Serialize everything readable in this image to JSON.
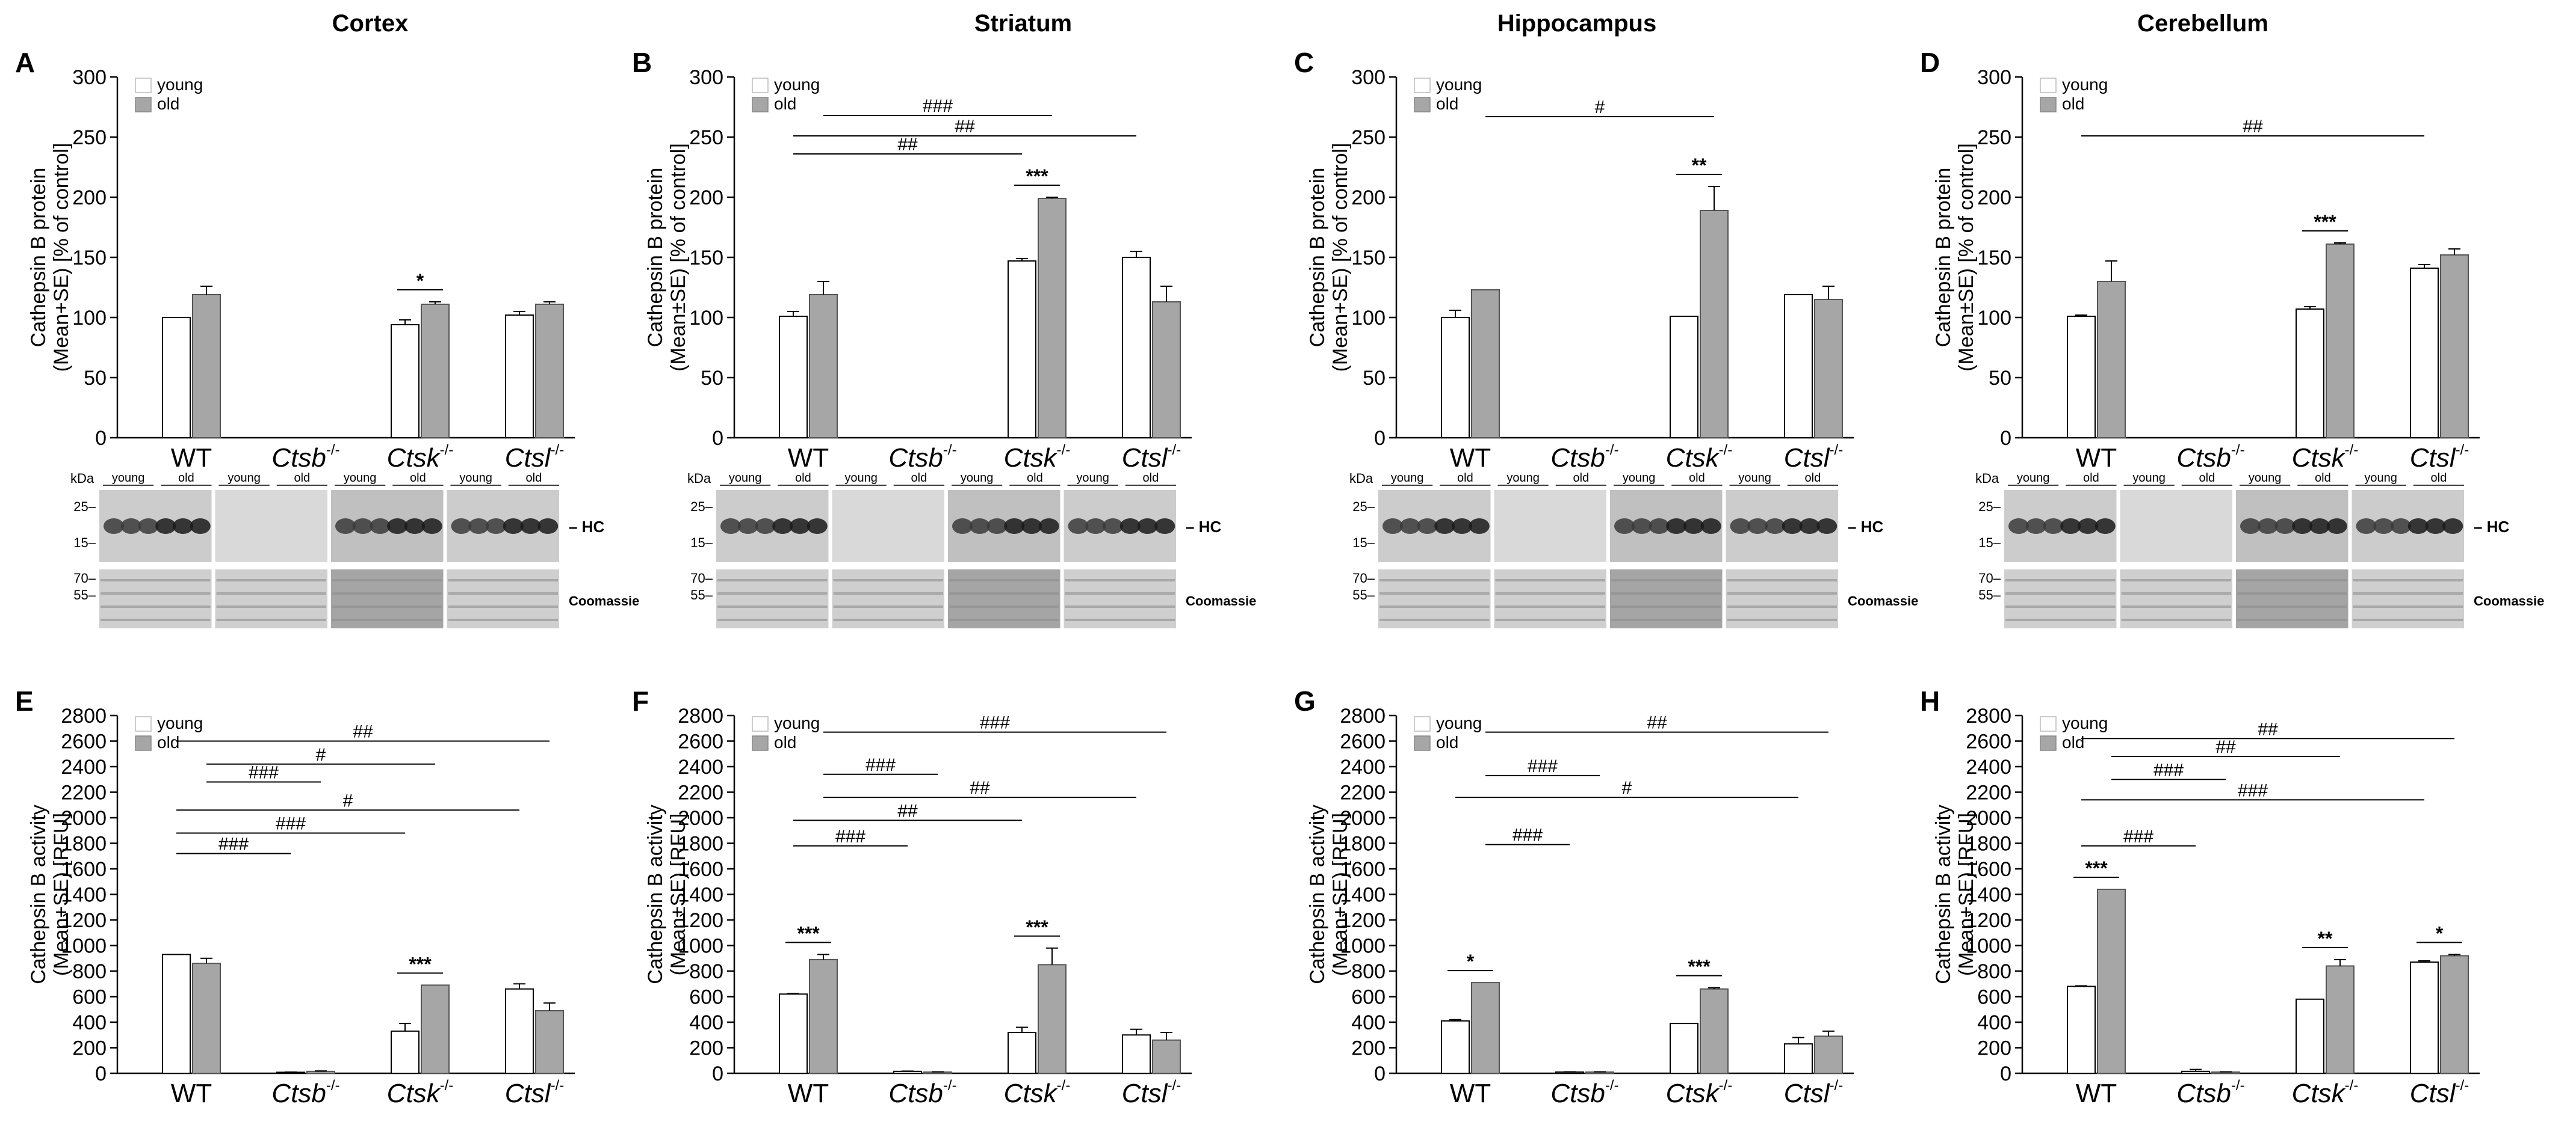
{
  "regions": [
    "Cortex",
    "Striatum",
    "Hippocampus",
    "Cerebellum"
  ],
  "legend": {
    "young": "young",
    "old": "old"
  },
  "blot": {
    "kda_label": "kDa",
    "hc_label": "HC",
    "coomassie_label": "Coomassie",
    "upper_markers": [
      "25",
      "15"
    ],
    "lower_markers": [
      "70",
      "55"
    ],
    "lane_young": "young",
    "lane_old": "old"
  },
  "colors": {
    "young": "#ffffff",
    "old": "#a6a6a6",
    "axis": "#000000",
    "line": "#000000"
  },
  "chart_data": [
    {
      "panel": "A",
      "region": "Cortex",
      "type": "bar",
      "ylabel": [
        "Cathepsin B protein",
        "(Mean+SE) [% of control]"
      ],
      "ylim": [
        0,
        300
      ],
      "yticks": [
        0,
        50,
        100,
        150,
        200,
        250,
        300
      ],
      "categories": [
        "WT",
        "Ctsb",
        "Ctsk",
        "Ctsl"
      ],
      "series": [
        {
          "name": "young",
          "values": [
            100,
            null,
            94,
            102
          ],
          "errors": [
            0,
            null,
            4,
            3
          ]
        },
        {
          "name": "old",
          "values": [
            119,
            null,
            111,
            111
          ],
          "errors": [
            7,
            null,
            2,
            2
          ]
        }
      ],
      "stars": [
        {
          "cat": 2,
          "label": "*"
        }
      ],
      "brackets": []
    },
    {
      "panel": "B",
      "region": "Striatum",
      "type": "bar",
      "ylabel": [
        "Cathepsin B protein",
        "(Mean±SE) [% of control]"
      ],
      "ylim": [
        0,
        300
      ],
      "yticks": [
        0,
        50,
        100,
        150,
        200,
        250,
        300
      ],
      "categories": [
        "WT",
        "Ctsb",
        "Ctsk",
        "Ctsl"
      ],
      "series": [
        {
          "name": "young",
          "values": [
            101,
            null,
            147,
            150
          ],
          "errors": [
            4,
            null,
            2,
            5
          ]
        },
        {
          "name": "old",
          "values": [
            119,
            null,
            199,
            113
          ],
          "errors": [
            11,
            null,
            1,
            13
          ]
        }
      ],
      "stars": [
        {
          "cat": 2,
          "label": "***"
        }
      ],
      "brackets": [
        {
          "label": "###",
          "from": [
            0,
            "old"
          ],
          "to": [
            2,
            "old"
          ],
          "y": 268
        },
        {
          "label": "##",
          "from": [
            0,
            "young"
          ],
          "to": [
            3,
            "young"
          ],
          "y": 251
        },
        {
          "label": "##",
          "from": [
            0,
            "young"
          ],
          "to": [
            2,
            "young"
          ],
          "y": 236
        }
      ]
    },
    {
      "panel": "C",
      "region": "Hippocampus",
      "type": "bar",
      "ylabel": [
        "Cathepsin B protein",
        "(Mean+SE) [% of control]"
      ],
      "ylim": [
        0,
        300
      ],
      "yticks": [
        0,
        50,
        100,
        150,
        200,
        250,
        300
      ],
      "categories": [
        "WT",
        "Ctsb",
        "Ctsk",
        "Ctsl"
      ],
      "series": [
        {
          "name": "young",
          "values": [
            100,
            null,
            101,
            119
          ],
          "errors": [
            6,
            null,
            0,
            0
          ]
        },
        {
          "name": "old",
          "values": [
            123,
            null,
            189,
            115
          ],
          "errors": [
            0,
            null,
            20,
            11
          ]
        }
      ],
      "stars": [
        {
          "cat": 2,
          "label": "**"
        }
      ],
      "brackets": [
        {
          "label": "#",
          "from": [
            0,
            "old"
          ],
          "to": [
            2,
            "old"
          ],
          "y": 267
        }
      ]
    },
    {
      "panel": "D",
      "region": "Cerebellum",
      "type": "bar",
      "ylabel": [
        "Cathepsin B protein",
        "(Mean±SE) [% of control]"
      ],
      "ylim": [
        0,
        300
      ],
      "yticks": [
        0,
        50,
        100,
        150,
        200,
        250,
        300
      ],
      "categories": [
        "WT",
        "Ctsb",
        "Ctsk",
        "Ctsl"
      ],
      "series": [
        {
          "name": "young",
          "values": [
            101,
            null,
            107,
            141
          ],
          "errors": [
            1,
            null,
            2,
            3
          ]
        },
        {
          "name": "old",
          "values": [
            130,
            null,
            161,
            152
          ],
          "errors": [
            17,
            null,
            1,
            5
          ]
        }
      ],
      "stars": [
        {
          "cat": 2,
          "label": "***"
        }
      ],
      "brackets": [
        {
          "label": "##",
          "from": [
            0,
            "young"
          ],
          "to": [
            3,
            "young"
          ],
          "y": 251
        }
      ]
    },
    {
      "panel": "E",
      "region": "Cortex",
      "type": "bar",
      "ylabel": [
        "Cathepsin B activity",
        "(Mean+SE) [RFU]"
      ],
      "ylim": [
        0,
        2800
      ],
      "yticks": [
        0,
        200,
        400,
        600,
        800,
        1000,
        1200,
        1400,
        1600,
        1800,
        2000,
        2200,
        2400,
        2600,
        2800
      ],
      "categories": [
        "WT",
        "Ctsb",
        "Ctsk",
        "Ctsl"
      ],
      "series": [
        {
          "name": "young",
          "values": [
            930,
            8,
            330,
            660
          ],
          "errors": [
            0,
            2,
            60,
            40
          ]
        },
        {
          "name": "old",
          "values": [
            860,
            15,
            690,
            490
          ],
          "errors": [
            40,
            3,
            0,
            60
          ]
        }
      ],
      "stars": [
        {
          "cat": 2,
          "label": "***"
        }
      ],
      "brackets": [
        {
          "label": "##",
          "from": [
            0,
            "young"
          ],
          "to": [
            3,
            "old"
          ],
          "y": 2600
        },
        {
          "label": "#",
          "from": [
            0,
            "old"
          ],
          "to": [
            2,
            "old"
          ],
          "y": 2420
        },
        {
          "label": "###",
          "from": [
            0,
            "old"
          ],
          "to": [
            1,
            "old"
          ],
          "y": 2280
        },
        {
          "label": "#",
          "from": [
            0,
            "young"
          ],
          "to": [
            3,
            "young"
          ],
          "y": 2060
        },
        {
          "label": "###",
          "from": [
            0,
            "young"
          ],
          "to": [
            2,
            "young"
          ],
          "y": 1880
        },
        {
          "label": "###",
          "from": [
            0,
            "young"
          ],
          "to": [
            1,
            "young"
          ],
          "y": 1720
        }
      ]
    },
    {
      "panel": "F",
      "region": "Striatum",
      "type": "bar",
      "ylabel": [
        "Cathepsin B activity",
        "(Mean±SE) [RFU]"
      ],
      "ylim": [
        0,
        2800
      ],
      "yticks": [
        0,
        200,
        400,
        600,
        800,
        1000,
        1200,
        1400,
        1600,
        1800,
        2000,
        2200,
        2400,
        2600,
        2800
      ],
      "categories": [
        "WT",
        "Ctsb",
        "Ctsk",
        "Ctsl"
      ],
      "series": [
        {
          "name": "young",
          "values": [
            620,
            15,
            320,
            300
          ],
          "errors": [
            5,
            2,
            40,
            45
          ]
        },
        {
          "name": "old",
          "values": [
            890,
            10,
            850,
            260
          ],
          "errors": [
            40,
            2,
            130,
            60
          ]
        }
      ],
      "stars": [
        {
          "cat": 0,
          "label": "***"
        },
        {
          "cat": 2,
          "label": "***"
        }
      ],
      "brackets": [
        {
          "label": "###",
          "from": [
            0,
            "old"
          ],
          "to": [
            3,
            "old"
          ],
          "y": 2670
        },
        {
          "label": "###",
          "from": [
            0,
            "old"
          ],
          "to": [
            1,
            "old"
          ],
          "y": 2340
        },
        {
          "label": "##",
          "from": [
            0,
            "old"
          ],
          "to": [
            3,
            "young"
          ],
          "y": 2160
        },
        {
          "label": "##",
          "from": [
            0,
            "young"
          ],
          "to": [
            2,
            "young"
          ],
          "y": 1980
        },
        {
          "label": "###",
          "from": [
            0,
            "young"
          ],
          "to": [
            1,
            "young"
          ],
          "y": 1780
        }
      ]
    },
    {
      "panel": "G",
      "region": "Hippocampus",
      "type": "bar",
      "ylabel": [
        "Cathepsin B activity",
        "(Mean+SE) [RFU]"
      ],
      "ylim": [
        0,
        2800
      ],
      "yticks": [
        0,
        200,
        400,
        600,
        800,
        1000,
        1200,
        1400,
        1600,
        1800,
        2000,
        2200,
        2400,
        2600,
        2800
      ],
      "categories": [
        "WT",
        "Ctsb",
        "Ctsk",
        "Ctsl"
      ],
      "series": [
        {
          "name": "young",
          "values": [
            410,
            10,
            390,
            230
          ],
          "errors": [
            10,
            2,
            0,
            50
          ]
        },
        {
          "name": "old",
          "values": [
            710,
            10,
            660,
            290
          ],
          "errors": [
            0,
            2,
            10,
            40
          ]
        }
      ],
      "stars": [
        {
          "cat": 0,
          "label": "*"
        },
        {
          "cat": 2,
          "label": "***"
        }
      ],
      "brackets": [
        {
          "label": "##",
          "from": [
            0,
            "old"
          ],
          "to": [
            3,
            "old"
          ],
          "y": 2670
        },
        {
          "label": "###",
          "from": [
            0,
            "old"
          ],
          "to": [
            1,
            "old"
          ],
          "y": 2330
        },
        {
          "label": "#",
          "from": [
            0,
            "young"
          ],
          "to": [
            3,
            "young"
          ],
          "y": 2160
        },
        {
          "label": "###",
          "from": [
            0,
            "old"
          ],
          "to": [
            1,
            "young"
          ],
          "y": 1790
        }
      ]
    },
    {
      "panel": "H",
      "region": "Cerebellum",
      "type": "bar",
      "ylabel": [
        "Cathepsin B activity",
        "(Mean+SE) [RFU]"
      ],
      "ylim": [
        0,
        2800
      ],
      "yticks": [
        0,
        200,
        400,
        600,
        800,
        1000,
        1200,
        1400,
        1600,
        1800,
        2000,
        2200,
        2400,
        2600,
        2800
      ],
      "categories": [
        "WT",
        "Ctsb",
        "Ctsk",
        "Ctsl"
      ],
      "series": [
        {
          "name": "young",
          "values": [
            680,
            15,
            580,
            870
          ],
          "errors": [
            5,
            15,
            0,
            10
          ]
        },
        {
          "name": "old",
          "values": [
            1440,
            10,
            840,
            920
          ],
          "errors": [
            0,
            2,
            50,
            10
          ]
        }
      ],
      "stars": [
        {
          "cat": 0,
          "label": "***"
        },
        {
          "cat": 2,
          "label": "**"
        },
        {
          "cat": 3,
          "label": "*"
        }
      ],
      "brackets": [
        {
          "label": "##",
          "from": [
            0,
            "young"
          ],
          "to": [
            3,
            "old"
          ],
          "y": 2620
        },
        {
          "label": "##",
          "from": [
            0,
            "old"
          ],
          "to": [
            2,
            "old"
          ],
          "y": 2480
        },
        {
          "label": "###",
          "from": [
            0,
            "old"
          ],
          "to": [
            1,
            "old"
          ],
          "y": 2300
        },
        {
          "label": "###",
          "from": [
            0,
            "young"
          ],
          "to": [
            3,
            "young"
          ],
          "y": 2140
        },
        {
          "label": "###",
          "from": [
            0,
            "young"
          ],
          "to": [
            1,
            "young"
          ],
          "y": 1780
        }
      ]
    }
  ],
  "genotype_suffix": "-/-"
}
